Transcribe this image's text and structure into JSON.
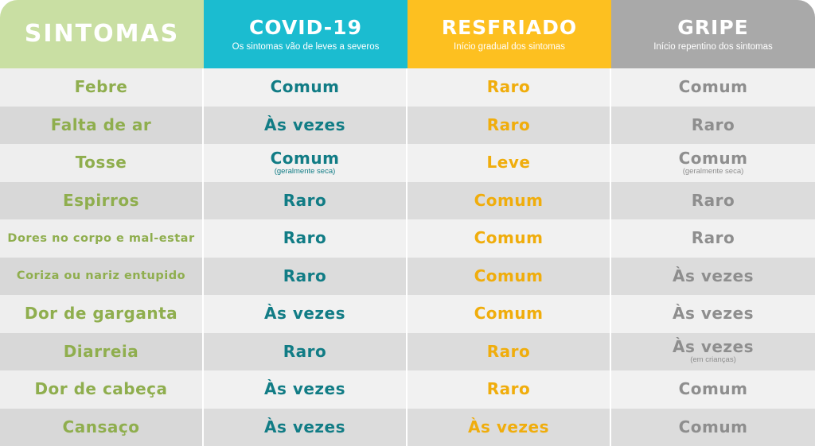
{
  "header": {
    "symptoms": {
      "title": "SINTOMAS"
    },
    "covid": {
      "title": "COVID-19",
      "subtitle": "Os sintomas vão de leves a severos"
    },
    "cold": {
      "title": "RESFRIADO",
      "subtitle": "Início gradual dos sintomas"
    },
    "flu": {
      "title": "GRIPE",
      "subtitle": "Início repentino dos sintomas"
    }
  },
  "rows": [
    {
      "symptom": "Febre",
      "covid": "Comum",
      "covid_note": "",
      "cold": "Raro",
      "flu": "Comum",
      "flu_note": ""
    },
    {
      "symptom": "Falta de ar",
      "covid": "Às vezes",
      "covid_note": "",
      "cold": "Raro",
      "flu": "Raro",
      "flu_note": ""
    },
    {
      "symptom": "Tosse",
      "covid": "Comum",
      "covid_note": "(geralmente seca)",
      "cold": "Leve",
      "flu": "Comum",
      "flu_note": "(geralmente seca)"
    },
    {
      "symptom": "Espirros",
      "covid": "Raro",
      "covid_note": "",
      "cold": "Comum",
      "flu": "Raro",
      "flu_note": ""
    },
    {
      "symptom": "Dores no corpo e mal-estar",
      "covid": "Raro",
      "covid_note": "",
      "cold": "Comum",
      "flu": "Raro",
      "flu_note": ""
    },
    {
      "symptom": "Coriza ou nariz entupido",
      "covid": "Raro",
      "covid_note": "",
      "cold": "Comum",
      "flu": "Às vezes",
      "flu_note": ""
    },
    {
      "symptom": "Dor de garganta",
      "covid": "Às vezes",
      "covid_note": "",
      "cold": "Comum",
      "flu": "Às vezes",
      "flu_note": ""
    },
    {
      "symptom": "Diarreia",
      "covid": "Raro",
      "covid_note": "",
      "cold": "Raro",
      "flu": "Às vezes",
      "flu_note": "(em crianças)"
    },
    {
      "symptom": "Dor de cabeça",
      "covid": "Às vezes",
      "covid_note": "",
      "cold": "Raro",
      "flu": "Comum",
      "flu_note": ""
    },
    {
      "symptom": "Cansaço",
      "covid": "Às vezes",
      "covid_note": "",
      "cold": "Às vezes",
      "flu": "Comum",
      "flu_note": ""
    }
  ],
  "colors": {
    "symptoms_header": "#c9dfa3",
    "covid_header": "#1bbcd0",
    "cold_header": "#fdc020",
    "flu_header": "#a9a9a9",
    "symptom_text": "#8fae4e",
    "covid_text": "#117c85",
    "cold_text": "#f0ad0c",
    "flu_text": "#8e8e8e"
  }
}
